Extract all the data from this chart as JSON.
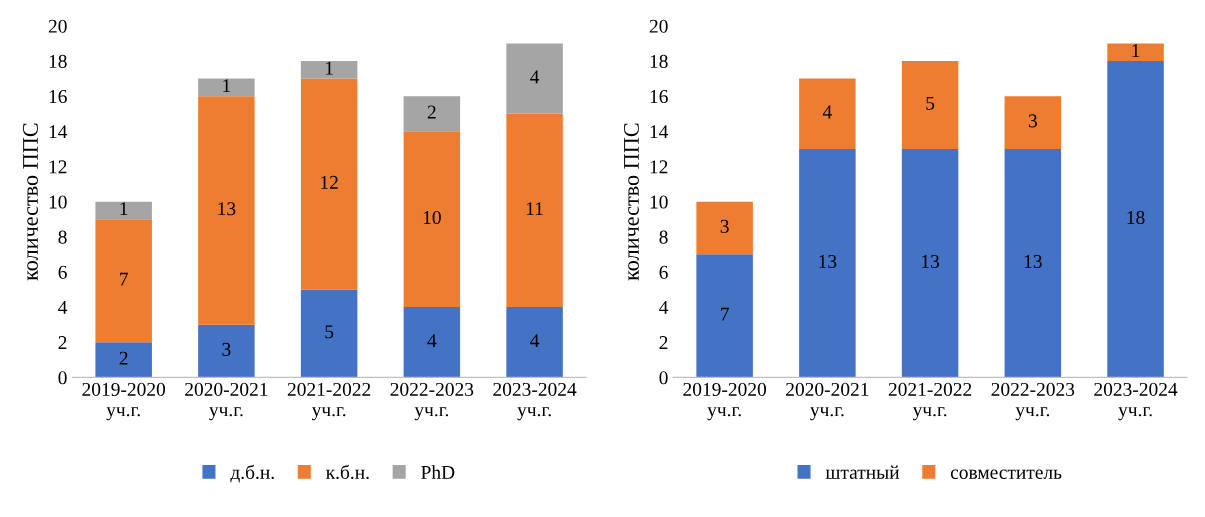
{
  "chart_data": [
    {
      "type": "bar",
      "stacked": true,
      "ylabel": "количество ППС",
      "categories": [
        "2019-2020\nуч.г.",
        "2020-2021\nуч.г.",
        "2021-2022\nуч.г.",
        "2022-2023\nуч.г.",
        "2023-2024\nуч.г."
      ],
      "ylim": [
        0,
        20
      ],
      "yticks": [
        0,
        2,
        4,
        6,
        8,
        10,
        12,
        14,
        16,
        18,
        20
      ],
      "grid": false,
      "legend": "bottom",
      "data_labels": true,
      "series": [
        {
          "name": "д.б.н.",
          "color": "#4472c4",
          "values": [
            2,
            3,
            5,
            4,
            4
          ]
        },
        {
          "name": "к.б.н.",
          "color": "#ed7d31",
          "values": [
            7,
            13,
            12,
            10,
            11
          ]
        },
        {
          "name": "PhD",
          "color": "#a5a5a5",
          "values": [
            1,
            1,
            1,
            2,
            4
          ]
        }
      ]
    },
    {
      "type": "bar",
      "stacked": true,
      "ylabel": "количество ППС",
      "categories": [
        "2019-2020\nуч.г.",
        "2020-2021\nуч.г.",
        "2021-2022\nуч.г.",
        "2022-2023\nуч.г.",
        "2023-2024\nуч.г."
      ],
      "ylim": [
        0,
        20
      ],
      "yticks": [
        0,
        2,
        4,
        6,
        8,
        10,
        12,
        14,
        16,
        18,
        20
      ],
      "grid": false,
      "legend": "bottom",
      "data_labels": true,
      "series": [
        {
          "name": "штатный",
          "color": "#4472c4",
          "values": [
            7,
            13,
            13,
            13,
            18
          ]
        },
        {
          "name": "совместитель",
          "color": "#ed7d31",
          "values": [
            3,
            4,
            5,
            3,
            1
          ]
        }
      ]
    }
  ]
}
